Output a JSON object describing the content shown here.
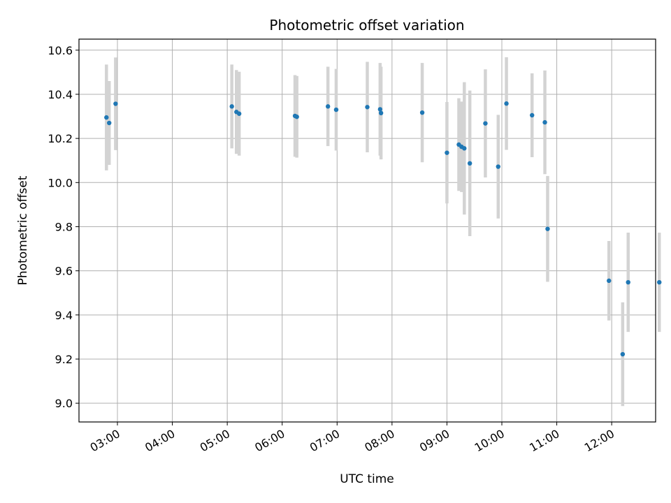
{
  "chart_data": {
    "type": "scatter",
    "title": "Photometric offset variation",
    "xlabel": "UTC time",
    "ylabel": "Photometric offset",
    "x_ticks": [
      "03:00",
      "04:00",
      "05:00",
      "06:00",
      "07:00",
      "08:00",
      "09:00",
      "10:00",
      "11:00",
      "12:00"
    ],
    "y_ticks": [
      "9.0",
      "9.2",
      "9.4",
      "9.6",
      "9.8",
      "10.0",
      "10.2",
      "10.4",
      "10.6"
    ],
    "xlim": [
      "02:18",
      "12:48"
    ],
    "ylim": [
      8.915,
      10.65
    ],
    "grid": true,
    "colors": {
      "point": "#1f77b4",
      "errorbar": "#d3d3d3",
      "grid": "#b0b0b0"
    },
    "series": [
      {
        "x": [
          "02:48",
          "02:51",
          "02:58",
          "05:05",
          "05:10",
          "05:13",
          "06:14",
          "06:16",
          "06:50",
          "06:59",
          "07:33",
          "07:47",
          "07:48",
          "08:33",
          "09:00",
          "09:13",
          "09:16",
          "09:19",
          "09:25",
          "09:42",
          "09:56",
          "10:05",
          "10:33",
          "10:47",
          "10:50",
          "11:57",
          "12:12",
          "12:18",
          "12:52"
        ],
        "y": [
          10.295,
          10.27,
          10.357,
          10.345,
          10.32,
          10.312,
          10.302,
          10.298,
          10.345,
          10.33,
          10.342,
          10.332,
          10.315,
          10.317,
          10.135,
          10.172,
          10.162,
          10.155,
          10.087,
          10.268,
          10.072,
          10.358,
          10.305,
          10.273,
          9.79,
          9.555,
          9.222,
          9.548,
          9.548
        ],
        "yerr": [
          0.24,
          0.19,
          0.21,
          0.19,
          0.19,
          0.19,
          0.185,
          0.185,
          0.18,
          0.185,
          0.205,
          0.21,
          0.21,
          0.225,
          0.23,
          0.21,
          0.205,
          0.3,
          0.33,
          0.245,
          0.235,
          0.21,
          0.19,
          0.235,
          0.24,
          0.18,
          0.235,
          0.225,
          0.225
        ]
      }
    ]
  }
}
